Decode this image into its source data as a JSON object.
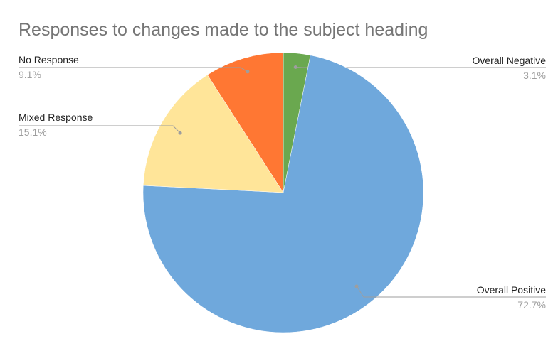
{
  "chart_data": {
    "type": "pie",
    "title": "Responses to changes made to the subject heading",
    "start_angle_deg": 0,
    "direction": "clockwise",
    "slices": [
      {
        "label": "Overall Negative",
        "value": 3.1,
        "display": "3.1%",
        "color": "#6aa84f"
      },
      {
        "label": "Overall Positive",
        "value": 72.7,
        "display": "72.7%",
        "color": "#6fa8dc"
      },
      {
        "label": "Mixed Response",
        "value": 15.1,
        "display": "15.1%",
        "color": "#ffe599"
      },
      {
        "label": "No Response",
        "value": 9.1,
        "display": "9.1%",
        "color": "#ff7733"
      }
    ],
    "legend": "callout-labels"
  }
}
